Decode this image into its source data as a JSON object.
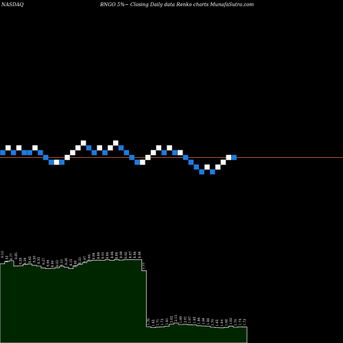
{
  "header": {
    "exchange": "NASDAQ",
    "caption": "BNGO 5%~  Closing Daily data  Renko  charts MunafaSutra.com"
  },
  "colors": {
    "background": "#000000",
    "up_brick": "#ffffff",
    "down_brick": "#1e7be0",
    "reference_line": "#b5522b",
    "volume_fill": "#002600",
    "volume_stroke": "#e6e6e6"
  },
  "chart_data": {
    "type": "renko",
    "bricks": [
      {
        "dir": "down",
        "level": 0
      },
      {
        "dir": "up",
        "level": 1
      },
      {
        "dir": "down",
        "level": 0
      },
      {
        "dir": "up",
        "level": 1
      },
      {
        "dir": "down",
        "level": 0
      },
      {
        "dir": "down",
        "level": 0
      },
      {
        "dir": "up",
        "level": 1
      },
      {
        "dir": "down",
        "level": 0
      },
      {
        "dir": "down",
        "level": -1
      },
      {
        "dir": "down",
        "level": -2
      },
      {
        "dir": "up",
        "level": -2
      },
      {
        "dir": "down",
        "level": -2
      },
      {
        "dir": "up",
        "level": -1
      },
      {
        "dir": "up",
        "level": 0
      },
      {
        "dir": "up",
        "level": 1
      },
      {
        "dir": "up",
        "level": 2
      },
      {
        "dir": "down",
        "level": 1
      },
      {
        "dir": "down",
        "level": 0
      },
      {
        "dir": "up",
        "level": 1
      },
      {
        "dir": "down",
        "level": 0
      },
      {
        "dir": "up",
        "level": 1
      },
      {
        "dir": "up",
        "level": 2
      },
      {
        "dir": "down",
        "level": 1
      },
      {
        "dir": "down",
        "level": 0
      },
      {
        "dir": "down",
        "level": -1
      },
      {
        "dir": "down",
        "level": -2
      },
      {
        "dir": "up",
        "level": -2
      },
      {
        "dir": "up",
        "level": -1
      },
      {
        "dir": "up",
        "level": 0
      },
      {
        "dir": "up",
        "level": 1
      },
      {
        "dir": "down",
        "level": 0
      },
      {
        "dir": "up",
        "level": 1
      },
      {
        "dir": "down",
        "level": 0
      },
      {
        "dir": "up",
        "level": 0
      },
      {
        "dir": "down",
        "level": -1
      },
      {
        "dir": "down",
        "level": -2
      },
      {
        "dir": "down",
        "level": -3
      },
      {
        "dir": "down",
        "level": -4
      },
      {
        "dir": "up",
        "level": -3
      },
      {
        "dir": "down",
        "level": -4
      },
      {
        "dir": "up",
        "level": -3
      },
      {
        "dir": "up",
        "level": -2
      },
      {
        "dir": "up",
        "level": -1
      },
      {
        "dir": "down",
        "level": -1
      }
    ],
    "volume_labels": [
      "9.10",
      "8.52",
      "8.77",
      "8.85",
      "8.28",
      "8.29",
      "8.45",
      "8.50",
      "8.35",
      "8.27",
      "8.06",
      "8.00",
      "8.03",
      "8.10",
      "8.26",
      "8.15",
      "8.00",
      "8.33",
      "8.47",
      "8.64",
      "8.84",
      "8.89",
      "8.91",
      "8.89",
      "8.96",
      "8.89",
      "8.98",
      "8.92",
      "8.97",
      "8.96",
      "8.96",
      "7.77",
      "1.76",
      "1.65",
      "1.71",
      "1.73",
      "1.81",
      "2.02",
      "2.15",
      "1.99",
      "2.01",
      "1.97",
      "1.95",
      "1.86",
      "1.84",
      "1.80",
      "1.70",
      "1.65",
      "1.64",
      "1.68",
      "1.82",
      "1.70",
      "1.74",
      "1.72"
    ],
    "volume_series": [
      {
        "values": [
          8.52,
          8.77,
          8.85,
          8.28,
          8.29,
          8.45,
          8.5,
          8.35,
          8.27,
          8.06,
          8.0,
          8.03,
          8.1,
          8.26,
          8.15,
          8.0,
          8.33,
          8.47,
          8.64,
          8.84,
          8.89,
          8.91,
          8.89,
          8.96,
          8.89,
          8.98,
          8.92,
          8.97,
          8.96,
          8.96,
          8.96,
          7.77,
          1.76,
          1.65,
          1.71,
          1.73,
          1.81,
          2.02,
          2.15,
          1.99,
          2.01,
          1.97,
          1.95,
          1.86,
          1.84,
          1.8,
          1.7,
          1.65,
          1.64,
          1.68,
          1.82,
          1.7,
          1.74,
          1.72
        ]
      }
    ]
  }
}
